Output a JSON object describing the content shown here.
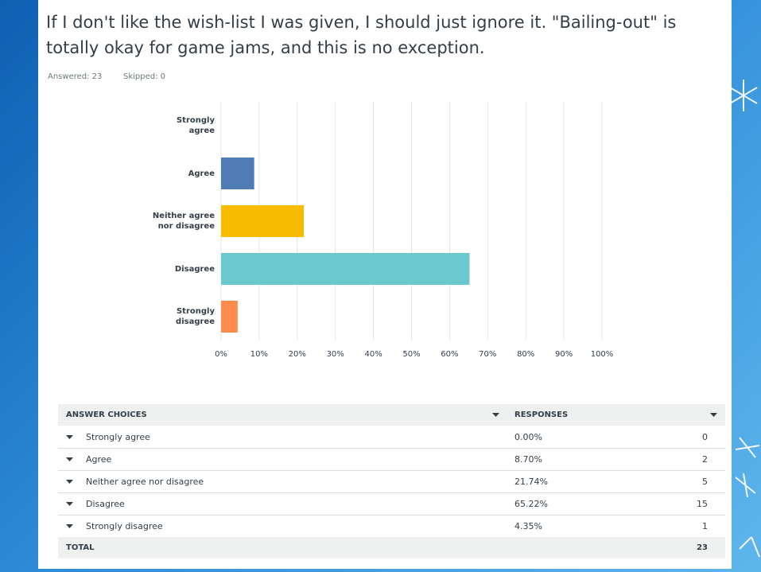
{
  "header": {
    "title": "If I don't like the wish-list I was given, I should just ignore it. \"Bailing-out\" is totally okay for game jams, and this is no exception.",
    "answered": "Answered: 23",
    "skipped": "Skipped: 0"
  },
  "chart_data": {
    "type": "bar",
    "orientation": "horizontal",
    "categories": [
      "Strongly agree",
      "Agree",
      "Neither agree nor disagree",
      "Disagree",
      "Strongly disagree"
    ],
    "values": [
      0,
      8.7,
      21.74,
      65.22,
      4.35
    ],
    "colors": [
      "#00bf6f",
      "#507cb6",
      "#f7bc00",
      "#6bc8cd",
      "#ff8b4f"
    ],
    "xlim": [
      0,
      100
    ],
    "xticks": [
      {
        "value": 0,
        "label": "0%"
      },
      {
        "value": 10,
        "label": "10%"
      },
      {
        "value": 20,
        "label": "20%"
      },
      {
        "value": 30,
        "label": "30%"
      },
      {
        "value": 40,
        "label": "40%"
      },
      {
        "value": 50,
        "label": "50%"
      },
      {
        "value": 60,
        "label": "60%"
      },
      {
        "value": 70,
        "label": "70%"
      },
      {
        "value": 80,
        "label": "80%"
      },
      {
        "value": 90,
        "label": "90%"
      },
      {
        "value": 100,
        "label": "100%"
      }
    ],
    "grid": true
  },
  "table": {
    "headers": [
      "ANSWER CHOICES",
      "RESPONSES"
    ],
    "rows": [
      [
        "Strongly agree",
        "0.00%",
        0
      ],
      [
        "Agree",
        "8.70%",
        2
      ],
      [
        "Neither agree nor disagree",
        "21.74%",
        5
      ],
      [
        "Disagree",
        "65.22%",
        15
      ],
      [
        "Strongly disagree",
        "4.35%",
        1
      ]
    ],
    "total": [
      "TOTAL",
      23
    ]
  }
}
